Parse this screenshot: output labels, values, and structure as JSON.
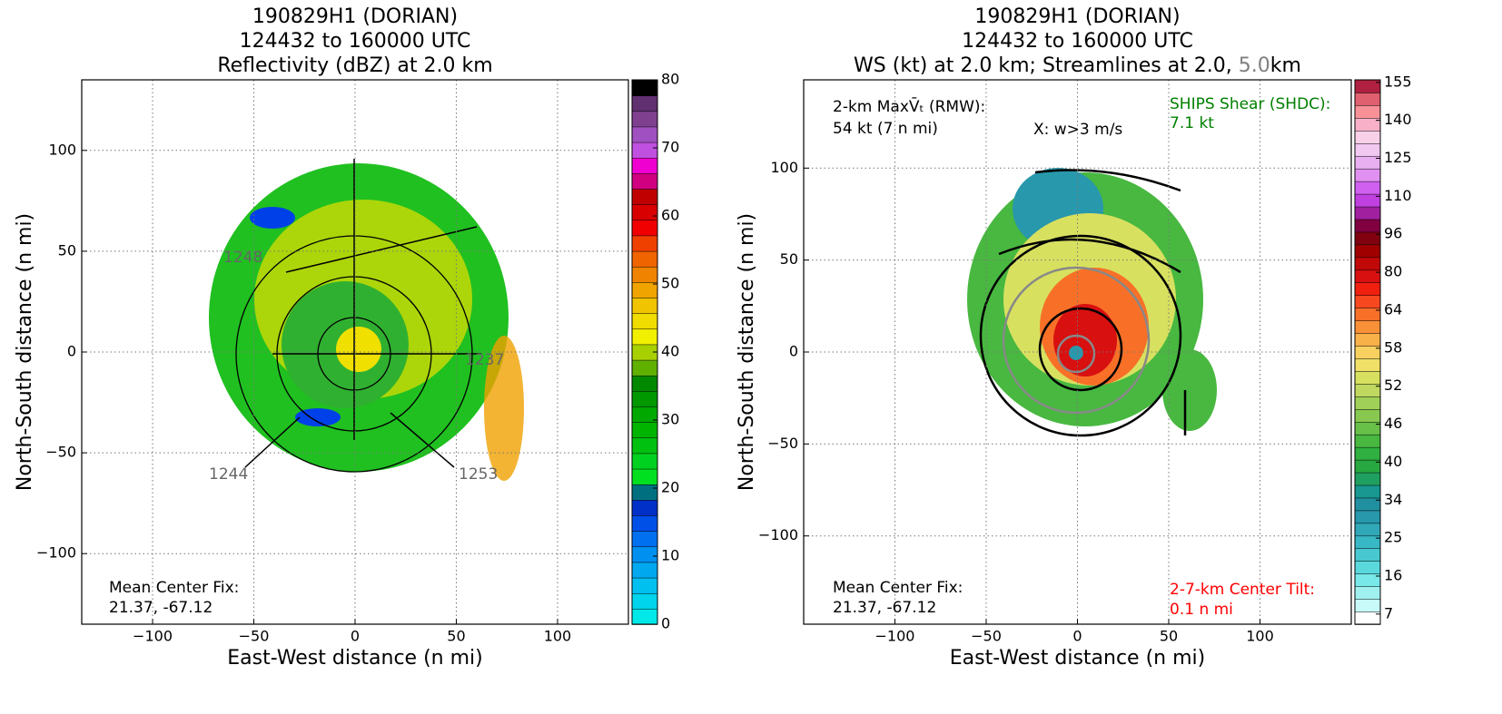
{
  "chart_data": [
    {
      "type": "heatmap",
      "title": [
        [
          {
            "text": "190829H1 (DORIAN)"
          }
        ],
        [
          {
            "text": "124432 to 160000 UTC"
          }
        ],
        [
          {
            "text": "Reflectivity (dBZ) at 2.0 km"
          }
        ]
      ],
      "xlabel": "East-West distance (n mi)",
      "ylabel": "North-South distance (n mi)",
      "xlim": [
        -135,
        135
      ],
      "ylim": [
        -135,
        135
      ],
      "xticks": [
        {
          "value": -100,
          "label": "−100"
        },
        {
          "value": -50,
          "label": "−50"
        },
        0,
        50,
        100
      ],
      "yticks": [
        {
          "value": -100,
          "label": "−100"
        },
        {
          "value": -50,
          "label": "−50"
        },
        0,
        50,
        100
      ],
      "grid": true,
      "colorbar": {
        "lim": [
          0,
          80
        ],
        "ticks": [
          0,
          10,
          20,
          30,
          40,
          50,
          60,
          70,
          80
        ],
        "colors": [
          "#00e8e8",
          "#00d4ec",
          "#00c0f0",
          "#00a8f0",
          "#0090f0",
          "#0070f0",
          "#0050e8",
          "#0030c8",
          "#007080",
          "#00e020",
          "#00d020",
          "#00c010",
          "#00b400",
          "#00a800",
          "#009800",
          "#008800",
          "#60b000",
          "#a8d000",
          "#f0f000",
          "#f0dc00",
          "#f0c400",
          "#f0a400",
          "#f08400",
          "#f06400",
          "#f04000",
          "#f00000",
          "#d80000",
          "#c00000",
          "#d00080",
          "#f000d0",
          "#c050e0",
          "#a050c0",
          "#804090",
          "#603070",
          "#000000"
        ]
      },
      "annotations": [
        {
          "text": "Mean Center Fix:",
          "color": "#000000"
        },
        {
          "text": "21.37, -67.12",
          "color": "#000000"
        },
        {
          "text": "1248",
          "color": "#666666"
        },
        {
          "text": "1237",
          "color": "#666666"
        },
        {
          "text": "1244",
          "color": "#666666"
        },
        {
          "text": "1253",
          "color": "#666666"
        }
      ]
    },
    {
      "type": "heatmap",
      "title": [
        [
          {
            "text": "190829H1 (DORIAN)"
          }
        ],
        [
          {
            "text": "124432 to 160000 UTC"
          }
        ],
        [
          {
            "text": "WS (kt) at 2.0 km; Streamlines at 2.0, "
          },
          {
            "text": "5.0",
            "color": "#808080"
          },
          {
            "text": "km"
          }
        ]
      ],
      "xlabel": "East-West distance (n mi)",
      "ylabel": "North-South distance (n mi)",
      "xlim": [
        -150,
        150
      ],
      "ylim": [
        -148,
        148
      ],
      "xticks": [
        {
          "value": -100,
          "label": "−100"
        },
        {
          "value": -50,
          "label": "−50"
        },
        0,
        50,
        100
      ],
      "yticks": [
        {
          "value": -100,
          "label": "−100"
        },
        {
          "value": -50,
          "label": "−50"
        },
        0,
        50,
        100
      ],
      "grid": true,
      "colorbar": {
        "ticks": [
          7,
          16,
          25,
          34,
          40,
          46,
          52,
          58,
          64,
          80,
          96,
          110,
          125,
          140,
          155
        ],
        "colors": [
          "#ffffff",
          "#c8fafa",
          "#a0f0f0",
          "#78e8e8",
          "#5ad8dc",
          "#48c8d0",
          "#38b8c4",
          "#30a8b8",
          "#2898ac",
          "#2090a0",
          "#189890",
          "#20a060",
          "#28a840",
          "#30b040",
          "#48b840",
          "#68c048",
          "#88c850",
          "#a0d058",
          "#c0d860",
          "#d8e060",
          "#f0e068",
          "#f8d060",
          "#f8b048",
          "#f89038",
          "#f87028",
          "#f84820",
          "#f02010",
          "#d81010",
          "#c00808",
          "#a00000",
          "#800010",
          "#800040",
          "#a020a0",
          "#c040e0",
          "#d060f0",
          "#e090f0",
          "#e8b0f0",
          "#f0c8f0",
          "#f8d0e8",
          "#f8b0c8",
          "#f89098",
          "#e06070",
          "#b02040"
        ]
      },
      "annotations": [
        {
          "text": "2-km MaxV̄ₜ (RMW):",
          "color": "#000000"
        },
        {
          "text": "54 kt (7 n mi)",
          "color": "#000000"
        },
        {
          "text": "X: w>3 m/s",
          "color": "#000000"
        },
        {
          "text": "SHIPS Shear (SHDC):",
          "color": "#008000"
        },
        {
          "text": "7.1 kt",
          "color": "#008000"
        },
        {
          "text": "Mean Center Fix:",
          "color": "#000000"
        },
        {
          "text": "21.37, -67.12",
          "color": "#000000"
        },
        {
          "text": "2-7-km Center Tilt:",
          "color": "#ff0000"
        },
        {
          "text": "0.1 n mi",
          "color": "#ff0000"
        }
      ]
    }
  ]
}
